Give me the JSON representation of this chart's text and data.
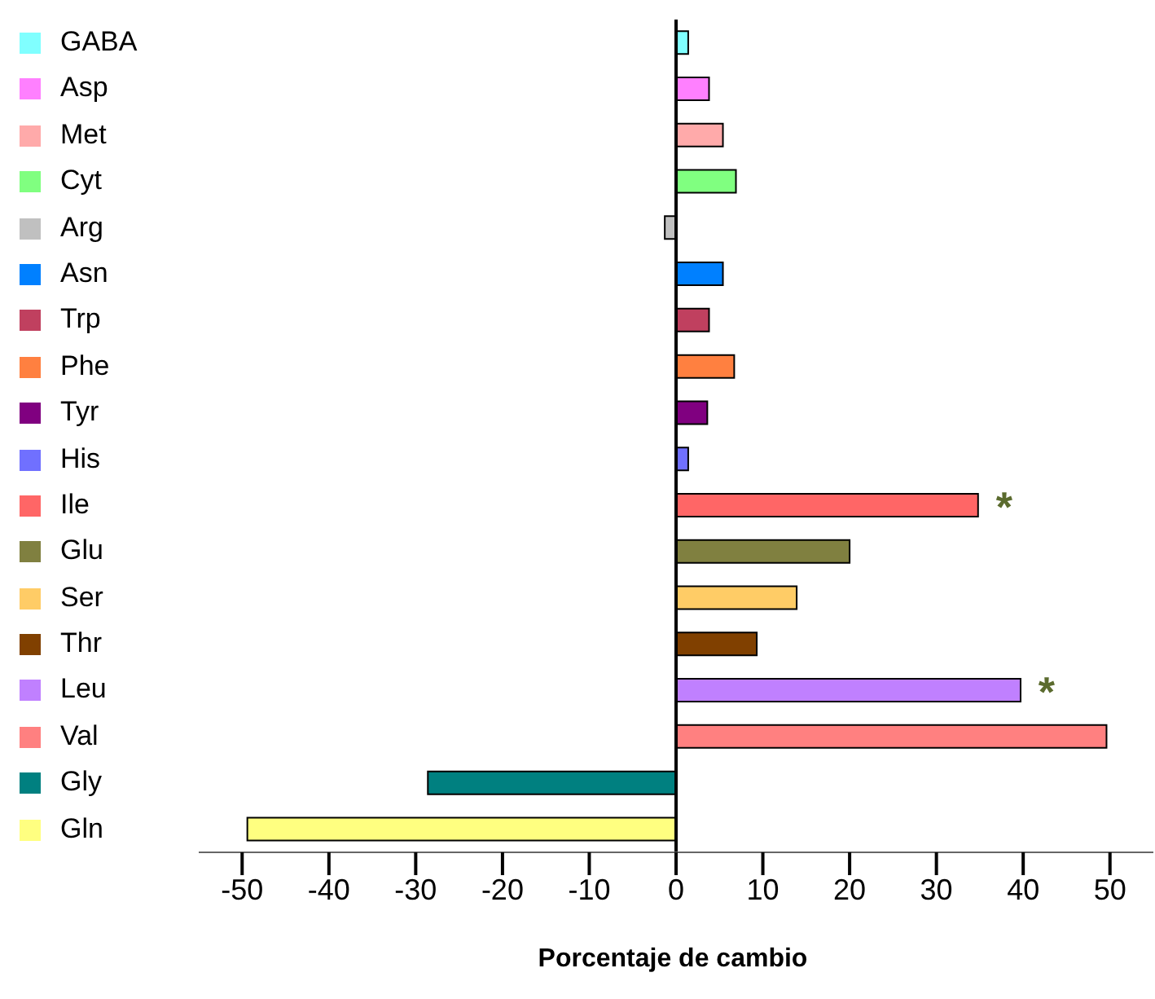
{
  "chart_data": {
    "type": "bar",
    "orientation": "horizontal",
    "stacked": true,
    "xlabel": "Porcentaje de cambio",
    "categories": [
      null,
      null,
      null,
      null,
      null,
      null,
      null,
      null,
      null,
      null,
      null,
      null,
      null,
      null,
      null,
      null,
      null,
      null
    ],
    "series": [
      {
        "name": "GABA",
        "color": "#80ffff",
        "values": [
          1.4,
          null,
          null,
          null,
          null,
          null,
          null,
          null,
          null,
          null,
          null,
          null,
          null,
          null,
          null,
          null,
          null,
          null
        ]
      },
      {
        "name": "Asp",
        "color": "#ff80ff",
        "values": [
          null,
          3.8,
          null,
          null,
          null,
          null,
          null,
          null,
          null,
          null,
          null,
          null,
          null,
          null,
          null,
          null,
          null,
          null
        ]
      },
      {
        "name": "Met",
        "color": "#ffaaaa",
        "values": [
          null,
          null,
          5.4,
          null,
          null,
          null,
          null,
          null,
          null,
          null,
          null,
          null,
          null,
          null,
          null,
          null,
          null,
          null
        ]
      },
      {
        "name": "Cyt",
        "color": "#80ff80",
        "values": [
          null,
          null,
          null,
          6.9,
          null,
          null,
          null,
          null,
          null,
          null,
          null,
          null,
          null,
          null,
          null,
          null,
          null,
          null
        ]
      },
      {
        "name": "Arg",
        "color": "#c0c0c0",
        "values": [
          null,
          null,
          null,
          null,
          -1.3,
          null,
          null,
          null,
          null,
          null,
          null,
          null,
          null,
          null,
          null,
          null,
          null,
          null
        ]
      },
      {
        "name": "Asn",
        "color": "#0080ff",
        "values": [
          null,
          null,
          null,
          null,
          null,
          5.4,
          null,
          null,
          null,
          null,
          null,
          null,
          null,
          null,
          null,
          null,
          null,
          null
        ]
      },
      {
        "name": "Trp",
        "color": "#c0405f",
        "values": [
          null,
          null,
          null,
          null,
          null,
          null,
          3.8,
          null,
          null,
          null,
          null,
          null,
          null,
          null,
          null,
          null,
          null,
          null
        ]
      },
      {
        "name": "Phe",
        "color": "#ff8040",
        "values": [
          null,
          null,
          null,
          null,
          null,
          null,
          null,
          6.7,
          null,
          null,
          null,
          null,
          null,
          null,
          null,
          null,
          null,
          null
        ]
      },
      {
        "name": "Tyr",
        "color": "#800080",
        "values": [
          null,
          null,
          null,
          null,
          null,
          null,
          null,
          null,
          3.6,
          null,
          null,
          null,
          null,
          null,
          null,
          null,
          null,
          null
        ]
      },
      {
        "name": "His",
        "color": "#7070ff",
        "values": [
          null,
          null,
          null,
          null,
          null,
          null,
          null,
          null,
          null,
          1.4,
          null,
          null,
          null,
          null,
          null,
          null,
          null,
          null
        ]
      },
      {
        "name": "Ile",
        "color": "#ff6666",
        "values": [
          null,
          null,
          null,
          null,
          null,
          null,
          null,
          null,
          null,
          null,
          34.8,
          null,
          null,
          null,
          null,
          null,
          null,
          null
        ]
      },
      {
        "name": "Glu",
        "color": "#808040",
        "values": [
          null,
          null,
          null,
          null,
          null,
          null,
          null,
          null,
          null,
          null,
          null,
          20,
          null,
          null,
          null,
          null,
          null,
          null
        ]
      },
      {
        "name": "Ser",
        "color": "#ffcc66",
        "values": [
          null,
          null,
          null,
          null,
          null,
          null,
          null,
          null,
          null,
          null,
          null,
          null,
          13.9,
          null,
          null,
          null,
          null,
          null
        ]
      },
      {
        "name": "Thr",
        "color": "#804000",
        "values": [
          null,
          null,
          null,
          null,
          null,
          null,
          null,
          null,
          null,
          null,
          null,
          null,
          null,
          9.3,
          null,
          null,
          null,
          null
        ]
      },
      {
        "name": "Leu",
        "color": "#c080ff",
        "values": [
          null,
          null,
          null,
          null,
          null,
          null,
          null,
          null,
          null,
          null,
          null,
          null,
          null,
          null,
          39.7,
          null,
          null,
          null
        ]
      },
      {
        "name": "Val",
        "color": "#ff8080",
        "values": [
          null,
          null,
          null,
          null,
          null,
          null,
          null,
          null,
          null,
          null,
          null,
          null,
          null,
          null,
          null,
          49.6,
          null,
          null
        ]
      },
      {
        "name": "Gly",
        "color": "#008080",
        "values": [
          null,
          null,
          null,
          null,
          null,
          null,
          null,
          null,
          null,
          null,
          null,
          null,
          null,
          null,
          null,
          null,
          -28.6,
          null
        ]
      },
      {
        "name": "Gln",
        "color": "#ffff80",
        "values": [
          null,
          null,
          null,
          null,
          null,
          null,
          null,
          null,
          null,
          null,
          null,
          null,
          null,
          null,
          null,
          null,
          null,
          -49.4
        ]
      }
    ],
    "xlim": [
      -55,
      55
    ],
    "xticks": [
      -50,
      -40,
      -30,
      -20,
      -10,
      0,
      10,
      20,
      30,
      40,
      50
    ],
    "legend": "left",
    "tick_labels": "x",
    "annotations": [
      {
        "text": "*",
        "x": 34.8
      },
      {
        "text": "*",
        "x": 39.7
      }
    ]
  }
}
